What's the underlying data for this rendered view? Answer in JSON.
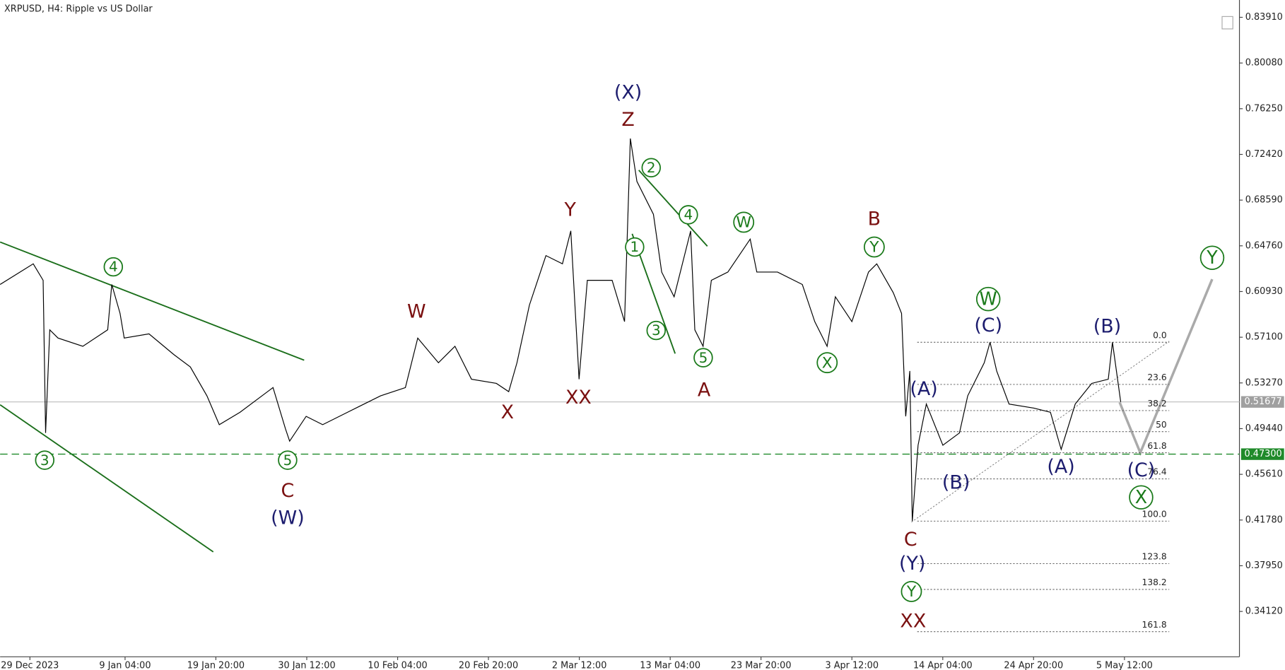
{
  "chart_data": {
    "type": "line",
    "title": "XRPUSD, H4:  Ripple vs US Dollar",
    "x": [
      -3.5,
      0.39,
      1.55,
      1.84,
      2.33,
      3.3,
      6.21,
      9.13,
      9.61,
      10.58,
      11.07,
      13.98,
      16.89,
      18.83,
      20.78,
      22.23,
      24.66,
      28.54,
      30,
      30.49,
      32.43,
      34.37,
      37.28,
      41.17,
      44.08,
      45.53,
      47.96,
      49.9,
      51.84,
      54.76,
      56.21,
      57.18,
      58.64,
      60.58,
      62.52,
      63.5,
      64.47,
      65.44,
      68.35,
      69.81,
      70.49,
      71.26,
      73.2,
      74.17,
      75.63,
      77.57,
      78.06,
      79.03,
      80,
      81.94,
      84.56,
      85.34,
      87.77,
      90.68,
      92.14,
      93.59,
      94.56,
      96.5,
      98.45,
      99.42,
      101.36,
      102.33,
      102.82,
      103.3,
      103.59,
      104.27,
      105.24,
      107.18,
      109.13,
      110.1,
      112.04,
      112.72,
      113.5,
      114.95,
      117.86,
      119.81,
      121.07,
      122.72,
      124.66,
      126.6,
      127.09,
      128.06
    ],
    "series": [
      {
        "name": "XRPUSD",
        "color": "#000000",
        "values": [
          0.6152,
          0.6325,
          0.6187,
          0.4908,
          0.5772,
          0.5703,
          0.5634,
          0.5772,
          0.6152,
          0.591,
          0.5703,
          0.5738,
          0.5565,
          0.5461,
          0.5219,
          0.4977,
          0.5081,
          0.5288,
          0.4943,
          0.4839,
          0.5047,
          0.4977,
          0.5081,
          0.5219,
          0.5288,
          0.5703,
          0.5496,
          0.5634,
          0.5358,
          0.5323,
          0.5254,
          0.5496,
          0.5979,
          0.6394,
          0.6325,
          0.6601,
          0.5358,
          0.6187,
          0.6187,
          0.5841,
          0.7375,
          0.7016,
          0.674,
          0.6256,
          0.6049,
          0.6601,
          0.5772,
          0.5634,
          0.6187,
          0.6256,
          0.6532,
          0.6256,
          0.6256,
          0.6152,
          0.5841,
          0.5634,
          0.6049,
          0.5841,
          0.6256,
          0.6325,
          0.6083,
          0.591,
          0.5047,
          0.5427,
          0.4169,
          0.4805,
          0.515,
          0.4805,
          0.4908,
          0.5219,
          0.5496,
          0.5668,
          0.5427,
          0.515,
          0.5116,
          0.5081,
          0.477,
          0.515,
          0.5323,
          0.5358,
          0.5668,
          0.5168
        ]
      }
    ],
    "xlim": [
      -3.5,
      142
    ],
    "xticks": [
      {
        "value": 0,
        "label": "29 Dec 2023"
      },
      {
        "value": 11.17,
        "label": "9 Jan 04:00"
      },
      {
        "value": 21.83,
        "label": "19 Jan 20:00"
      },
      {
        "value": 32.5,
        "label": "30 Jan 12:00"
      },
      {
        "value": 43.17,
        "label": "10 Feb 04:00"
      },
      {
        "value": 53.83,
        "label": "20 Feb 20:00"
      },
      {
        "value": 64.5,
        "label": "2 Mar 12:00"
      },
      {
        "value": 75.17,
        "label": "13 Mar 04:00"
      },
      {
        "value": 85.83,
        "label": "23 Mar 20:00"
      },
      {
        "value": 96.5,
        "label": "3 Apr 12:00"
      },
      {
        "value": 107.17,
        "label": "14 Apr 04:00"
      },
      {
        "value": 117.83,
        "label": "24 Apr 20:00"
      },
      {
        "value": 128.5,
        "label": "5 May 12:00"
      }
    ],
    "ylim": [
      0.3032,
      0.8536
    ],
    "yticks": [
      {
        "value": 0.8391,
        "label": "0.83910"
      },
      {
        "value": 0.8008,
        "label": "0.80080"
      },
      {
        "value": 0.7625,
        "label": "0.76250"
      },
      {
        "value": 0.7242,
        "label": "0.72420"
      },
      {
        "value": 0.6859,
        "label": "0.68590"
      },
      {
        "value": 0.6476,
        "label": "0.64760"
      },
      {
        "value": 0.6093,
        "label": "0.60930"
      },
      {
        "value": 0.571,
        "label": "0.57100"
      },
      {
        "value": 0.5327,
        "label": "0.53270"
      },
      {
        "value": 0.4944,
        "label": "0.49440"
      },
      {
        "value": 0.4561,
        "label": "0.45610"
      },
      {
        "value": 0.4178,
        "label": "0.41780"
      },
      {
        "value": 0.3795,
        "label": "0.37950"
      },
      {
        "value": 0.3412,
        "label": "0.34120"
      }
    ],
    "current_price": 0.51677,
    "level": {
      "value": 0.473,
      "label": "0.47300"
    },
    "fib_levels": [
      {
        "value": 0,
        "label": "0.0"
      },
      23.6,
      38.2,
      50,
      61.8,
      76.4,
      {
        "value": 100,
        "label": "100.0"
      },
      123.8,
      138.2,
      161.8
    ],
    "annotations": [
      {
        "text": "4",
        "color": "#1a7a1a",
        "circled": true
      },
      {
        "text": "3",
        "color": "#1a7a1a",
        "circled": true
      },
      {
        "text": "5",
        "color": "#1a7a1a",
        "circled": true
      },
      {
        "text": "2",
        "color": "#1a7a1a",
        "circled": true
      },
      {
        "text": "1",
        "color": "#1a7a1a",
        "circled": true
      },
      {
        "text": "4",
        "color": "#1a7a1a",
        "circled": true
      },
      {
        "text": "3",
        "color": "#1a7a1a",
        "circled": true
      },
      {
        "text": "5",
        "color": "#1a7a1a",
        "circled": true
      },
      {
        "text": "W",
        "color": "#1a7a1a",
        "circled": true
      },
      {
        "text": "Y",
        "color": "#1a7a1a",
        "circled": true
      },
      {
        "text": "X",
        "color": "#1a7a1a",
        "circled": true
      },
      {
        "text": "W",
        "color": "#1a7a1a",
        "circled": true
      },
      {
        "text": "Y",
        "color": "#1a7a1a",
        "circled": true
      },
      {
        "text": "X",
        "color": "#1a7a1a",
        "circled": true
      },
      {
        "text": "Y",
        "color": "#1a7a1a",
        "circled": true
      },
      {
        "text": "C",
        "color": "#7a1010",
        "circled": false
      },
      {
        "text": "W",
        "color": "#7a1010",
        "circled": false
      },
      {
        "text": "X",
        "color": "#7a1010",
        "circled": false
      },
      {
        "text": "Y",
        "color": "#7a1010",
        "circled": false
      },
      {
        "text": "XX",
        "color": "#7a1010",
        "circled": false
      },
      {
        "text": "Z",
        "color": "#7a1010",
        "circled": false
      },
      {
        "text": "A",
        "color": "#7a1010",
        "circled": false
      },
      {
        "text": "B",
        "color": "#7a1010",
        "circled": false
      },
      {
        "text": "C",
        "color": "#7a1010",
        "circled": false
      },
      {
        "text": "XX",
        "color": "#7a1010",
        "circled": false
      },
      {
        "text": "(W)",
        "color": "#1c1c6e",
        "circled": false
      },
      {
        "text": "(X)",
        "color": "#1c1c6e",
        "circled": false
      },
      {
        "text": "(A)",
        "color": "#1c1c6e",
        "circled": false
      },
      {
        "text": "(B)",
        "color": "#1c1c6e",
        "circled": false
      },
      {
        "text": "(C)",
        "color": "#1c1c6e",
        "circled": false
      },
      {
        "text": "(A)",
        "color": "#1c1c6e",
        "circled": false
      },
      {
        "text": "(B)",
        "color": "#1c1c6e",
        "circled": false
      },
      {
        "text": "(C)",
        "color": "#1c1c6e",
        "circled": false
      },
      {
        "text": "(Y)",
        "color": "#1c1c6e",
        "circled": false
      }
    ]
  }
}
